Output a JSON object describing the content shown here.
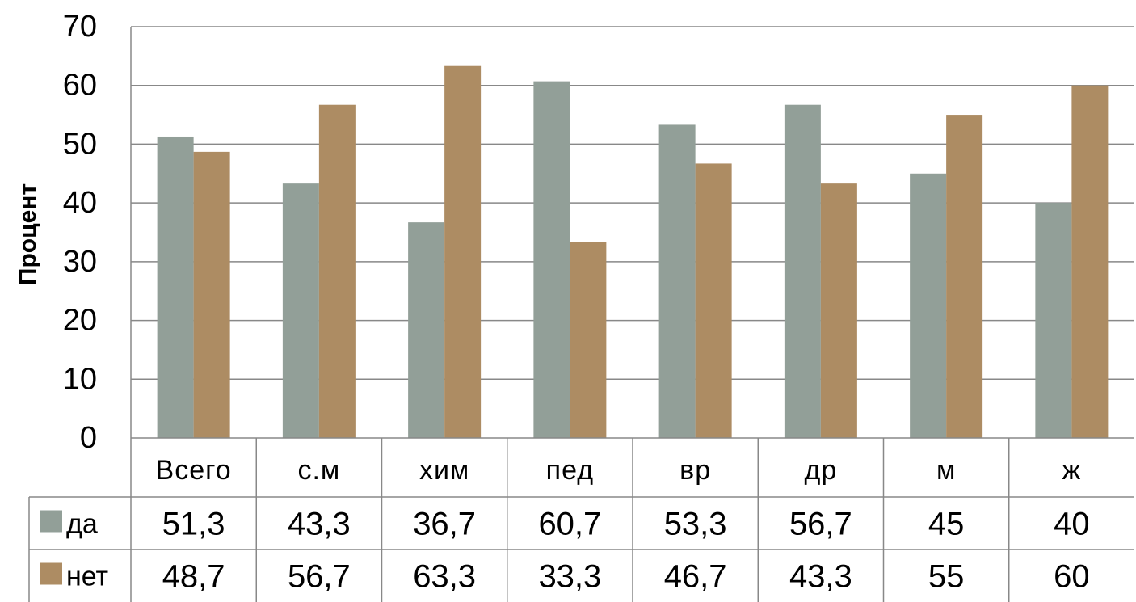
{
  "chart_data": {
    "type": "bar",
    "ylabel": "Процент",
    "ylim": [
      0,
      70
    ],
    "yticks": [
      0,
      10,
      20,
      30,
      40,
      50,
      60,
      70
    ],
    "grid": true,
    "legend_placement": "data-table",
    "categories": [
      "Всего",
      "с.м",
      "хим",
      "пед",
      "вр",
      "др",
      "м",
      "ж"
    ],
    "series": [
      {
        "name": "да",
        "color": "#929f98",
        "values": [
          51.3,
          43.3,
          36.7,
          60.7,
          53.3,
          56.7,
          45,
          40
        ],
        "labels": [
          "51,3",
          "43,3",
          "36,7",
          "60,7",
          "53,3",
          "56,7",
          "45",
          "40"
        ]
      },
      {
        "name": "нет",
        "color": "#ad8c63",
        "values": [
          48.7,
          56.7,
          63.3,
          33.3,
          46.7,
          43.3,
          55,
          60
        ],
        "labels": [
          "48,7",
          "56,7",
          "63,3",
          "33,3",
          "46,7",
          "43,3",
          "55",
          "60"
        ]
      }
    ]
  }
}
